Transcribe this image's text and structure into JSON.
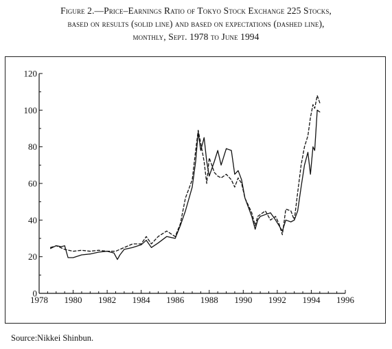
{
  "title_lines": [
    "Figure 2.—Price–Earnings Ratio of Tokyo Stock Exchange 225 Stocks,",
    "based on results (solid line) and based on expectations (dashed line),",
    "monthly, Sept. 1978 to June 1994"
  ],
  "source": "Source:Nikkei Shinbun.",
  "chart_data": {
    "type": "line",
    "title": "Price–Earnings Ratio of Tokyo Stock Exchange 225 Stocks",
    "xlabel": "",
    "ylabel": "",
    "xlim": [
      1978,
      1996
    ],
    "ylim": [
      0,
      120
    ],
    "x_ticks": [
      1978,
      1980,
      1982,
      1984,
      1986,
      1988,
      1990,
      1992,
      1994,
      1996
    ],
    "y_ticks": [
      0,
      20,
      40,
      60,
      80,
      100,
      120
    ],
    "grid": false,
    "series": [
      {
        "name": "based on results (solid line)",
        "style": "solid",
        "x": [
          1978.67,
          1979.0,
          1979.3,
          1979.5,
          1979.7,
          1980.0,
          1980.5,
          1981.0,
          1981.5,
          1982.0,
          1982.4,
          1982.6,
          1982.75,
          1983.0,
          1983.5,
          1984.0,
          1984.3,
          1984.6,
          1985.0,
          1985.5,
          1986.0,
          1986.3,
          1986.6,
          1987.0,
          1987.2,
          1987.35,
          1987.5,
          1987.7,
          1987.85,
          1988.0,
          1988.3,
          1988.5,
          1988.7,
          1989.0,
          1989.3,
          1989.5,
          1989.7,
          1989.9,
          1990.1,
          1990.3,
          1990.5,
          1990.7,
          1990.85,
          1991.0,
          1991.3,
          1991.6,
          1991.9,
          1992.1,
          1992.3,
          1992.5,
          1992.8,
          1993.0,
          1993.2,
          1993.4,
          1993.6,
          1993.8,
          1993.95,
          1994.1,
          1994.2,
          1994.35,
          1994.5
        ],
        "values": [
          24.5,
          26,
          25.5,
          26,
          19.5,
          19.5,
          21,
          21.5,
          22.5,
          23,
          22,
          18.5,
          21,
          24,
          25,
          26.5,
          29,
          25,
          27.5,
          31,
          30,
          37,
          45,
          58,
          72,
          88,
          78,
          85,
          72,
          64,
          72,
          78,
          70,
          79,
          78,
          65,
          67,
          62,
          52,
          47,
          42,
          35,
          40,
          42,
          43,
          44,
          40,
          37,
          34,
          40,
          39,
          40,
          45,
          58,
          70,
          77,
          65,
          80,
          78,
          100,
          99
        ]
      },
      {
        "name": "based on expectations (dashed line)",
        "style": "dashed",
        "x": [
          1978.67,
          1979.0,
          1979.5,
          1980.0,
          1980.5,
          1981.0,
          1981.5,
          1982.0,
          1982.5,
          1983.0,
          1983.5,
          1984.0,
          1984.3,
          1984.6,
          1985.0,
          1985.5,
          1986.0,
          1986.3,
          1986.6,
          1987.0,
          1987.2,
          1987.35,
          1987.5,
          1987.7,
          1987.85,
          1988.0,
          1988.3,
          1988.5,
          1988.7,
          1989.0,
          1989.3,
          1989.5,
          1989.7,
          1989.9,
          1990.1,
          1990.3,
          1990.5,
          1990.7,
          1990.85,
          1991.0,
          1991.3,
          1991.6,
          1991.9,
          1992.1,
          1992.3,
          1992.5,
          1992.8,
          1993.0,
          1993.2,
          1993.4,
          1993.6,
          1993.8,
          1993.95,
          1994.1,
          1994.2,
          1994.35,
          1994.5
        ],
        "values": [
          25,
          26,
          24,
          23,
          23.5,
          23,
          23.5,
          23,
          23,
          25,
          27,
          27,
          31,
          27,
          31,
          34,
          31,
          38,
          52,
          62,
          78,
          89,
          82,
          72,
          60,
          74,
          66,
          64,
          63,
          65,
          62,
          58,
          63,
          60,
          52,
          48,
          44,
          37,
          42,
          43,
          45,
          40,
          42,
          38,
          32,
          46,
          45,
          40,
          55,
          70,
          80,
          86,
          96,
          103,
          101,
          108,
          104
        ]
      }
    ]
  }
}
